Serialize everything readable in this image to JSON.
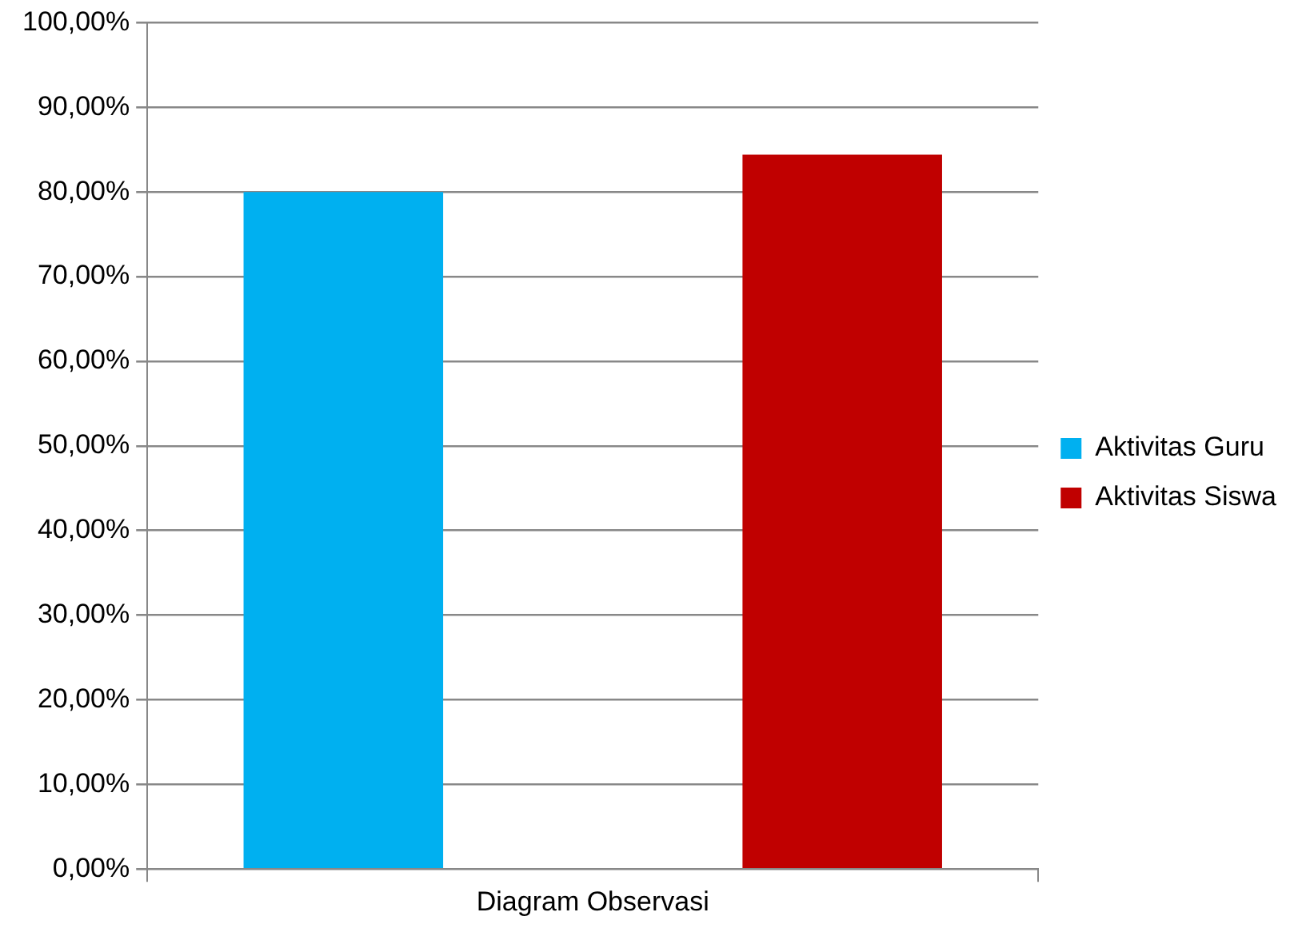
{
  "chart_data": {
    "type": "bar",
    "categories": [
      "Diagram Observasi"
    ],
    "series": [
      {
        "name": "Aktivitas Guru",
        "color": "#00b0f0",
        "values": [
          80
        ]
      },
      {
        "name": "Aktivitas Siswa",
        "color": "#c00000",
        "values": [
          84.4
        ]
      }
    ],
    "ylim": [
      0,
      100
    ],
    "yticks": [
      {
        "value": 0,
        "label": "0,00%"
      },
      {
        "value": 10,
        "label": "10,00%"
      },
      {
        "value": 20,
        "label": "20,00%"
      },
      {
        "value": 30,
        "label": "30,00%"
      },
      {
        "value": 40,
        "label": "40,00%"
      },
      {
        "value": 50,
        "label": "50,00%"
      },
      {
        "value": 60,
        "label": "60,00%"
      },
      {
        "value": 70,
        "label": "70,00%"
      },
      {
        "value": 80,
        "label": "80,00%"
      },
      {
        "value": 90,
        "label": "90,00%"
      },
      {
        "value": 100,
        "label": "100,00%"
      }
    ],
    "grid": "y",
    "legend": "right"
  }
}
